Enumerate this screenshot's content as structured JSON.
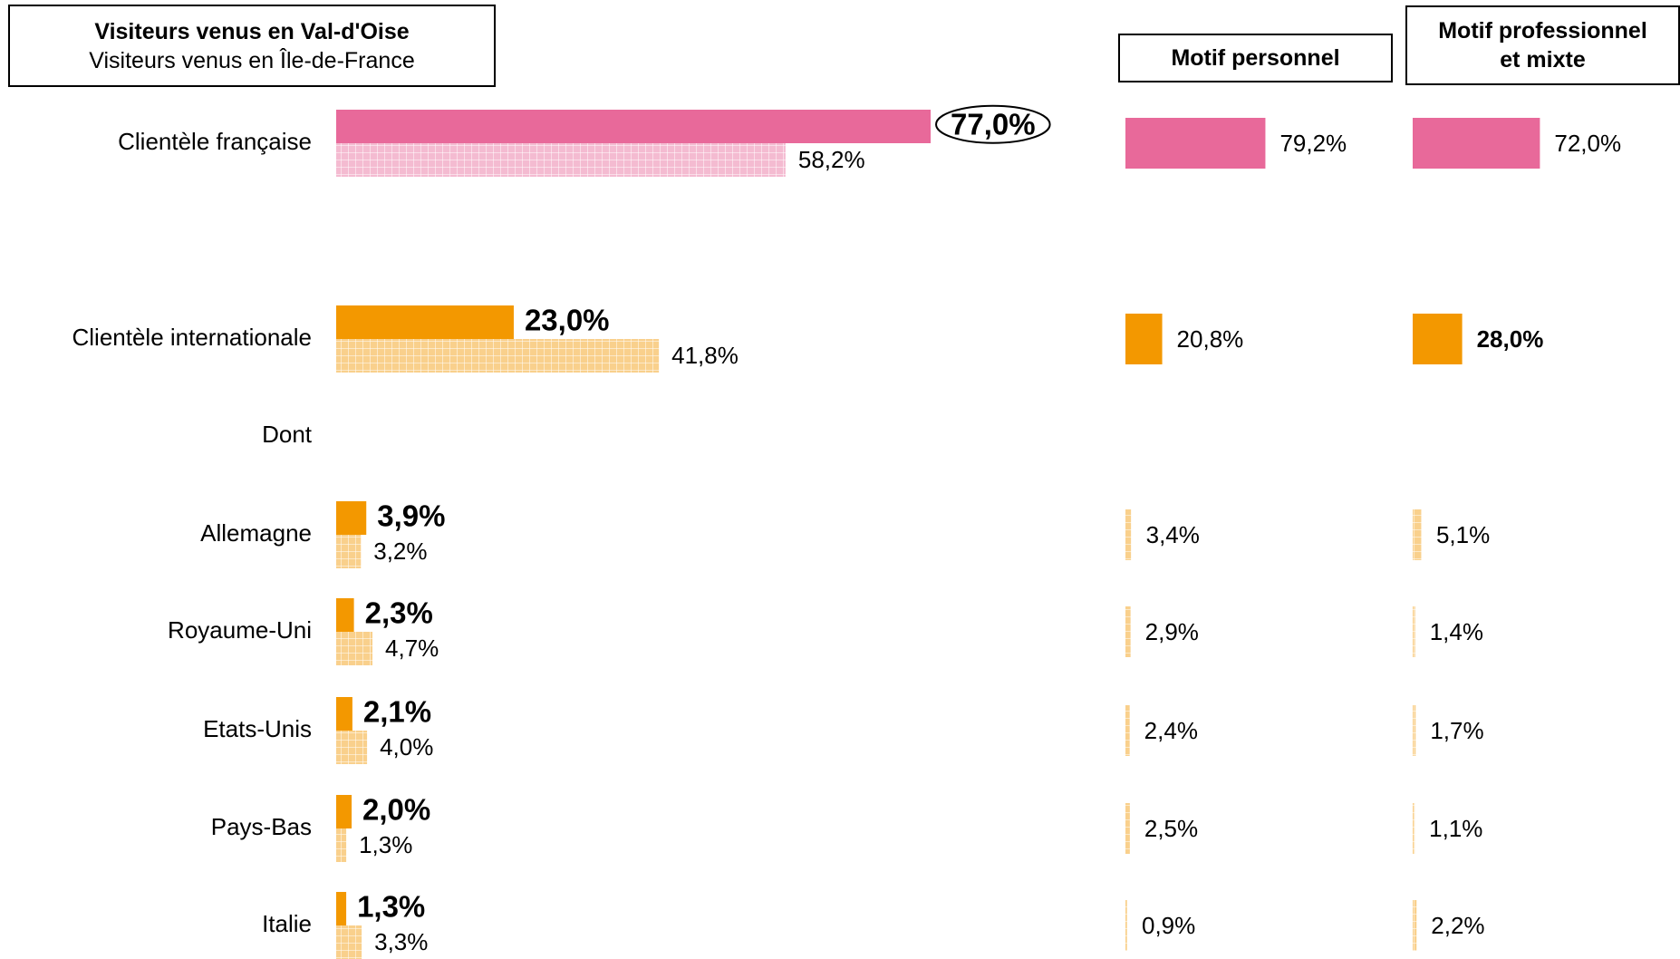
{
  "chart_data": [
    {
      "type": "bar",
      "categories": [
        "Clientèle française",
        "Clientèle internationale",
        "Allemagne",
        "Royaume-Uni",
        "Etats-Unis",
        "Pays-Bas",
        "Italie"
      ],
      "subheading": "Dont",
      "colors": [
        "#e8699a",
        "#f39800",
        "#f39800",
        "#f39800",
        "#f39800",
        "#f39800",
        "#f39800"
      ],
      "circled_index": 0,
      "series": [
        {
          "name": "Visiteurs venus en Val-d'Oise",
          "values": [
            77.0,
            23.0,
            3.9,
            2.3,
            2.1,
            2.0,
            1.3
          ],
          "value_labels": [
            "77,0%",
            "23,0%",
            "3,9%",
            "2,3%",
            "2,1%",
            "2,0%",
            "1,3%"
          ]
        },
        {
          "name": "Visiteurs venus en Île-de-France",
          "pattern": "grid",
          "values": [
            58.2,
            41.8,
            3.2,
            4.7,
            4.0,
            1.3,
            3.3
          ],
          "value_labels": [
            "58,2%",
            "41,8%",
            "3,2%",
            "4,7%",
            "4,0%",
            "1,3%",
            "3,3%"
          ]
        }
      ]
    },
    {
      "type": "bar",
      "title": "Motif personnel",
      "values": [
        79.2,
        20.8,
        3.4,
        2.9,
        2.4,
        2.5,
        0.9
      ],
      "value_labels": [
        "79,2%",
        "20,8%",
        "3,4%",
        "2,9%",
        "2,4%",
        "2,5%",
        "0,9%"
      ]
    },
    {
      "type": "bar",
      "title": "Motif professionnel et mixte",
      "values": [
        72.0,
        28.0,
        5.1,
        1.4,
        1.7,
        1.1,
        2.2
      ],
      "value_labels": [
        "72,0%",
        "28,0%",
        "5,1%",
        "1,4%",
        "1,7%",
        "1,1%",
        "2,2%"
      ],
      "highlight_index": 1,
      "highlight_color": "#e30613"
    }
  ]
}
